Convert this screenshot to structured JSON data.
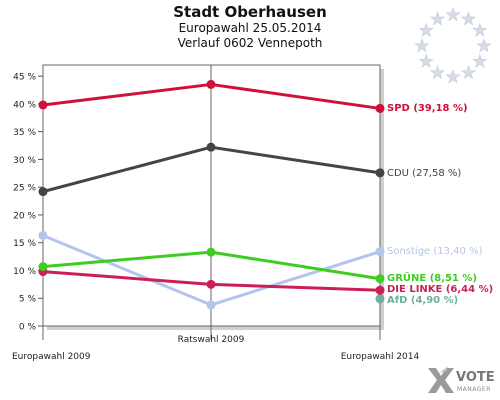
{
  "header": {
    "title": "Stadt Oberhausen",
    "subtitle1": "Europawahl 25.05.2014",
    "subtitle2": "Verlauf 0602 Vennepoth"
  },
  "logo": {
    "icon": "eu-stars-icon",
    "brand_line1": "VOTE",
    "brand_line2": "MANAGER"
  },
  "chart_data": {
    "type": "line",
    "title": "Stadt Oberhausen",
    "categories": [
      "Europawahl 2009",
      "Ratswahl 2009",
      "Europawahl 2014"
    ],
    "ylim": [
      0,
      47
    ],
    "yticks": [
      0,
      5,
      10,
      15,
      20,
      25,
      30,
      35,
      40,
      45
    ],
    "ytick_labels": [
      "0 %",
      "5 %",
      "10 %",
      "15 %",
      "20 %",
      "25 %",
      "30 %",
      "35 %",
      "40 %",
      "45 %"
    ],
    "grid": false,
    "series": [
      {
        "name": "Sonstige",
        "label": "Sonstige (13,40 %)",
        "color": "#b4c4ec",
        "values": [
          16.3,
          3.8,
          13.4
        ]
      },
      {
        "name": "AfD",
        "label": "AfD (4,90 %)",
        "color": "#6fae9f",
        "values": [
          null,
          null,
          4.9
        ]
      },
      {
        "name": "DIE LINKE",
        "label": "DIE LINKE (6,44 %)",
        "color": "#cc1f55",
        "values": [
          9.8,
          7.5,
          6.44
        ]
      },
      {
        "name": "GRÜNE",
        "label": "GRÜNE (8,51 %)",
        "color": "#3fcc22",
        "values": [
          10.7,
          13.3,
          8.51
        ]
      },
      {
        "name": "CDU",
        "label": "CDU (27,58 %)",
        "color": "#444444",
        "values": [
          24.2,
          32.2,
          27.58
        ]
      },
      {
        "name": "SPD",
        "label": "SPD (39,18 %)",
        "color": "#d0103a",
        "values": [
          39.8,
          43.5,
          39.18
        ]
      }
    ]
  }
}
